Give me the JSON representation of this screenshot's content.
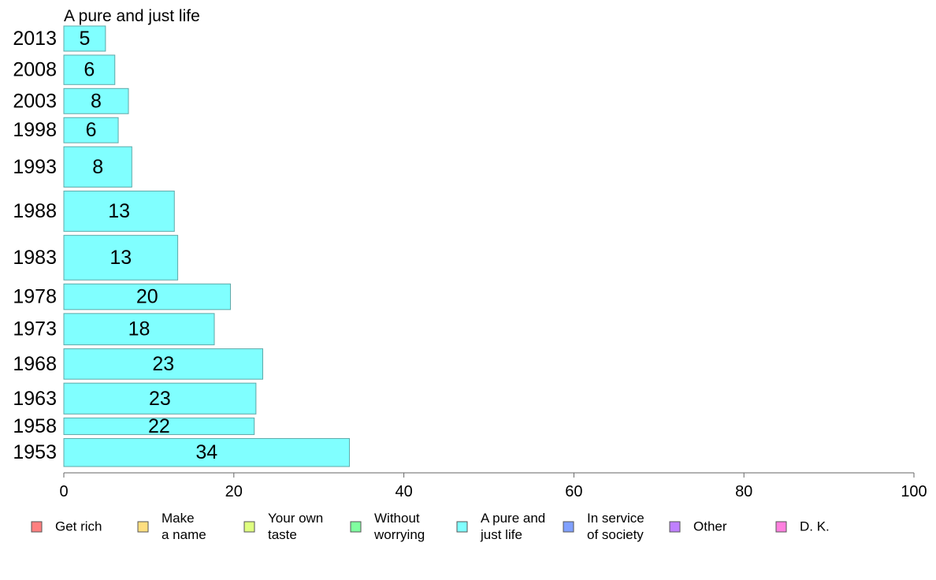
{
  "chart_data": {
    "type": "bar",
    "orientation": "horizontal",
    "title": "A pure and just life",
    "xlabel": "",
    "ylabel": "",
    "xlim": [
      0,
      100
    ],
    "x_ticks": [
      "0",
      "20",
      "40",
      "60",
      "80",
      "100"
    ],
    "grid": false,
    "bar_color": "#80ffff",
    "categories": [
      "2013",
      "2008",
      "2003",
      "1998",
      "1993",
      "1988",
      "1983",
      "1978",
      "1973",
      "1968",
      "1963",
      "1958",
      "1953"
    ],
    "values": [
      4.9,
      6,
      7.6,
      6.4,
      8,
      13,
      13.4,
      19.6,
      17.7,
      23.4,
      22.6,
      22.4,
      33.6
    ],
    "value_labels": [
      "5",
      "6",
      "8",
      "6",
      "8",
      "13",
      "13",
      "20",
      "18",
      "23",
      "23",
      "22",
      "34"
    ],
    "relative_sample_size": [
      0.53,
      0.62,
      0.53,
      0.53,
      0.85,
      0.85,
      0.94,
      0.54,
      0.66,
      0.64,
      0.65,
      0.35,
      0.59
    ],
    "legend": {
      "position": "bottom",
      "items": [
        {
          "label": [
            "Get rich"
          ],
          "color": "#ff8080"
        },
        {
          "label": [
            "Make",
            "a name"
          ],
          "color": "#ffdf80"
        },
        {
          "label": [
            "Your own",
            "taste"
          ],
          "color": "#dfff80"
        },
        {
          "label": [
            "Without",
            "worrying"
          ],
          "color": "#80ffa0"
        },
        {
          "label": [
            "A pure and",
            "just life"
          ],
          "color": "#80ffff"
        },
        {
          "label": [
            "In service",
            "of society"
          ],
          "color": "#80a0ff"
        },
        {
          "label": [
            "Other"
          ],
          "color": "#bf80ff"
        },
        {
          "label": [
            "D. K."
          ],
          "color": "#ff80df"
        }
      ]
    }
  }
}
